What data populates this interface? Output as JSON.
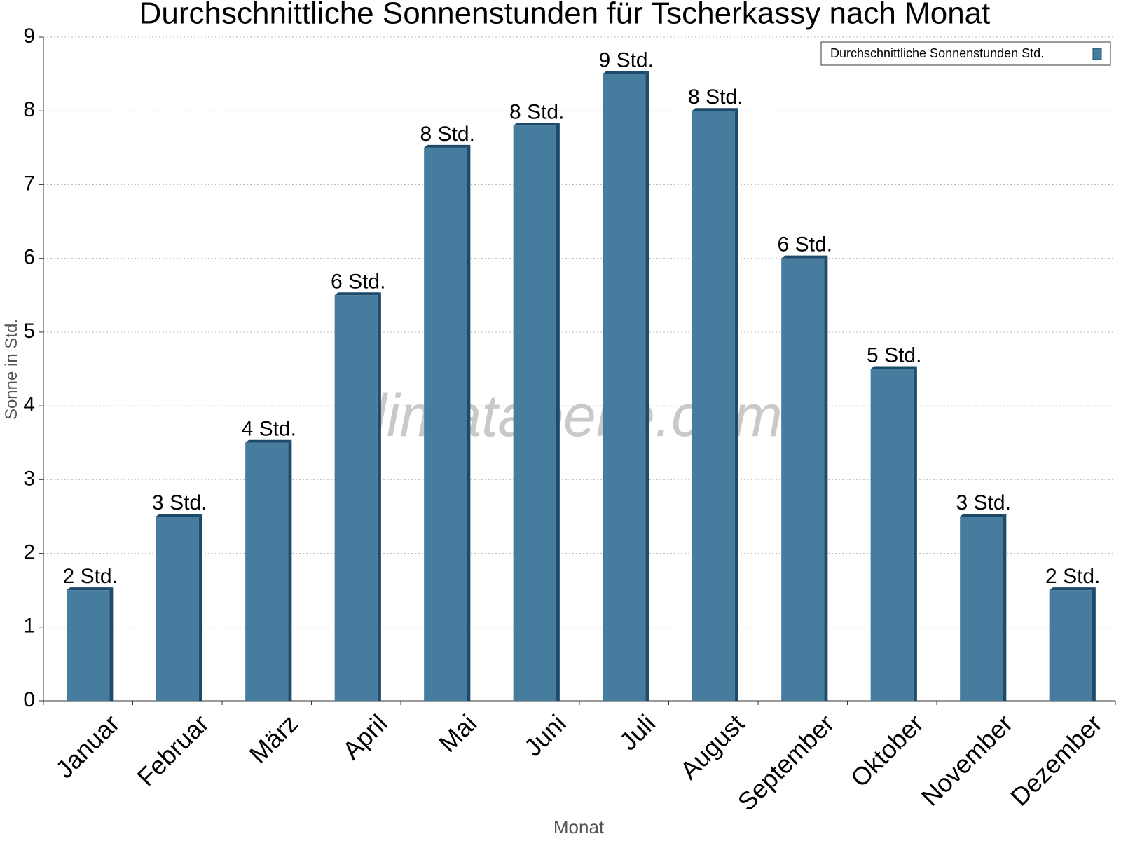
{
  "chart_data": {
    "type": "bar",
    "title": "Durchschnittliche Sonnenstunden für Tscherkassy nach Monat",
    "x_label": "Monat",
    "y_label": "Sonne in Std.",
    "watermark": "klimatabelle.com",
    "categories": [
      "Januar",
      "Februar",
      "März",
      "April",
      "Mai",
      "Juni",
      "Juli",
      "August",
      "September",
      "Oktober",
      "November",
      "Dezember"
    ],
    "series": [
      {
        "name": "Durchschnittliche Sonnenstunden Std.",
        "color": "#467c9e",
        "values": [
          1.5,
          2.5,
          3.5,
          5.5,
          7.5,
          7.8,
          8.5,
          8.0,
          6.0,
          4.5,
          2.5,
          1.5
        ],
        "value_labels": [
          "2 Std.",
          "3 Std.",
          "4 Std.",
          "6 Std.",
          "8 Std.",
          "8 Std.",
          "9 Std.",
          "8 Std.",
          "6 Std.",
          "5 Std.",
          "3 Std.",
          "2 Std."
        ]
      }
    ],
    "ylim": [
      0,
      9
    ],
    "yticks": [
      0,
      1,
      2,
      3,
      4,
      5,
      6,
      7,
      8,
      9
    ],
    "grid": true,
    "legend": "top-right"
  }
}
